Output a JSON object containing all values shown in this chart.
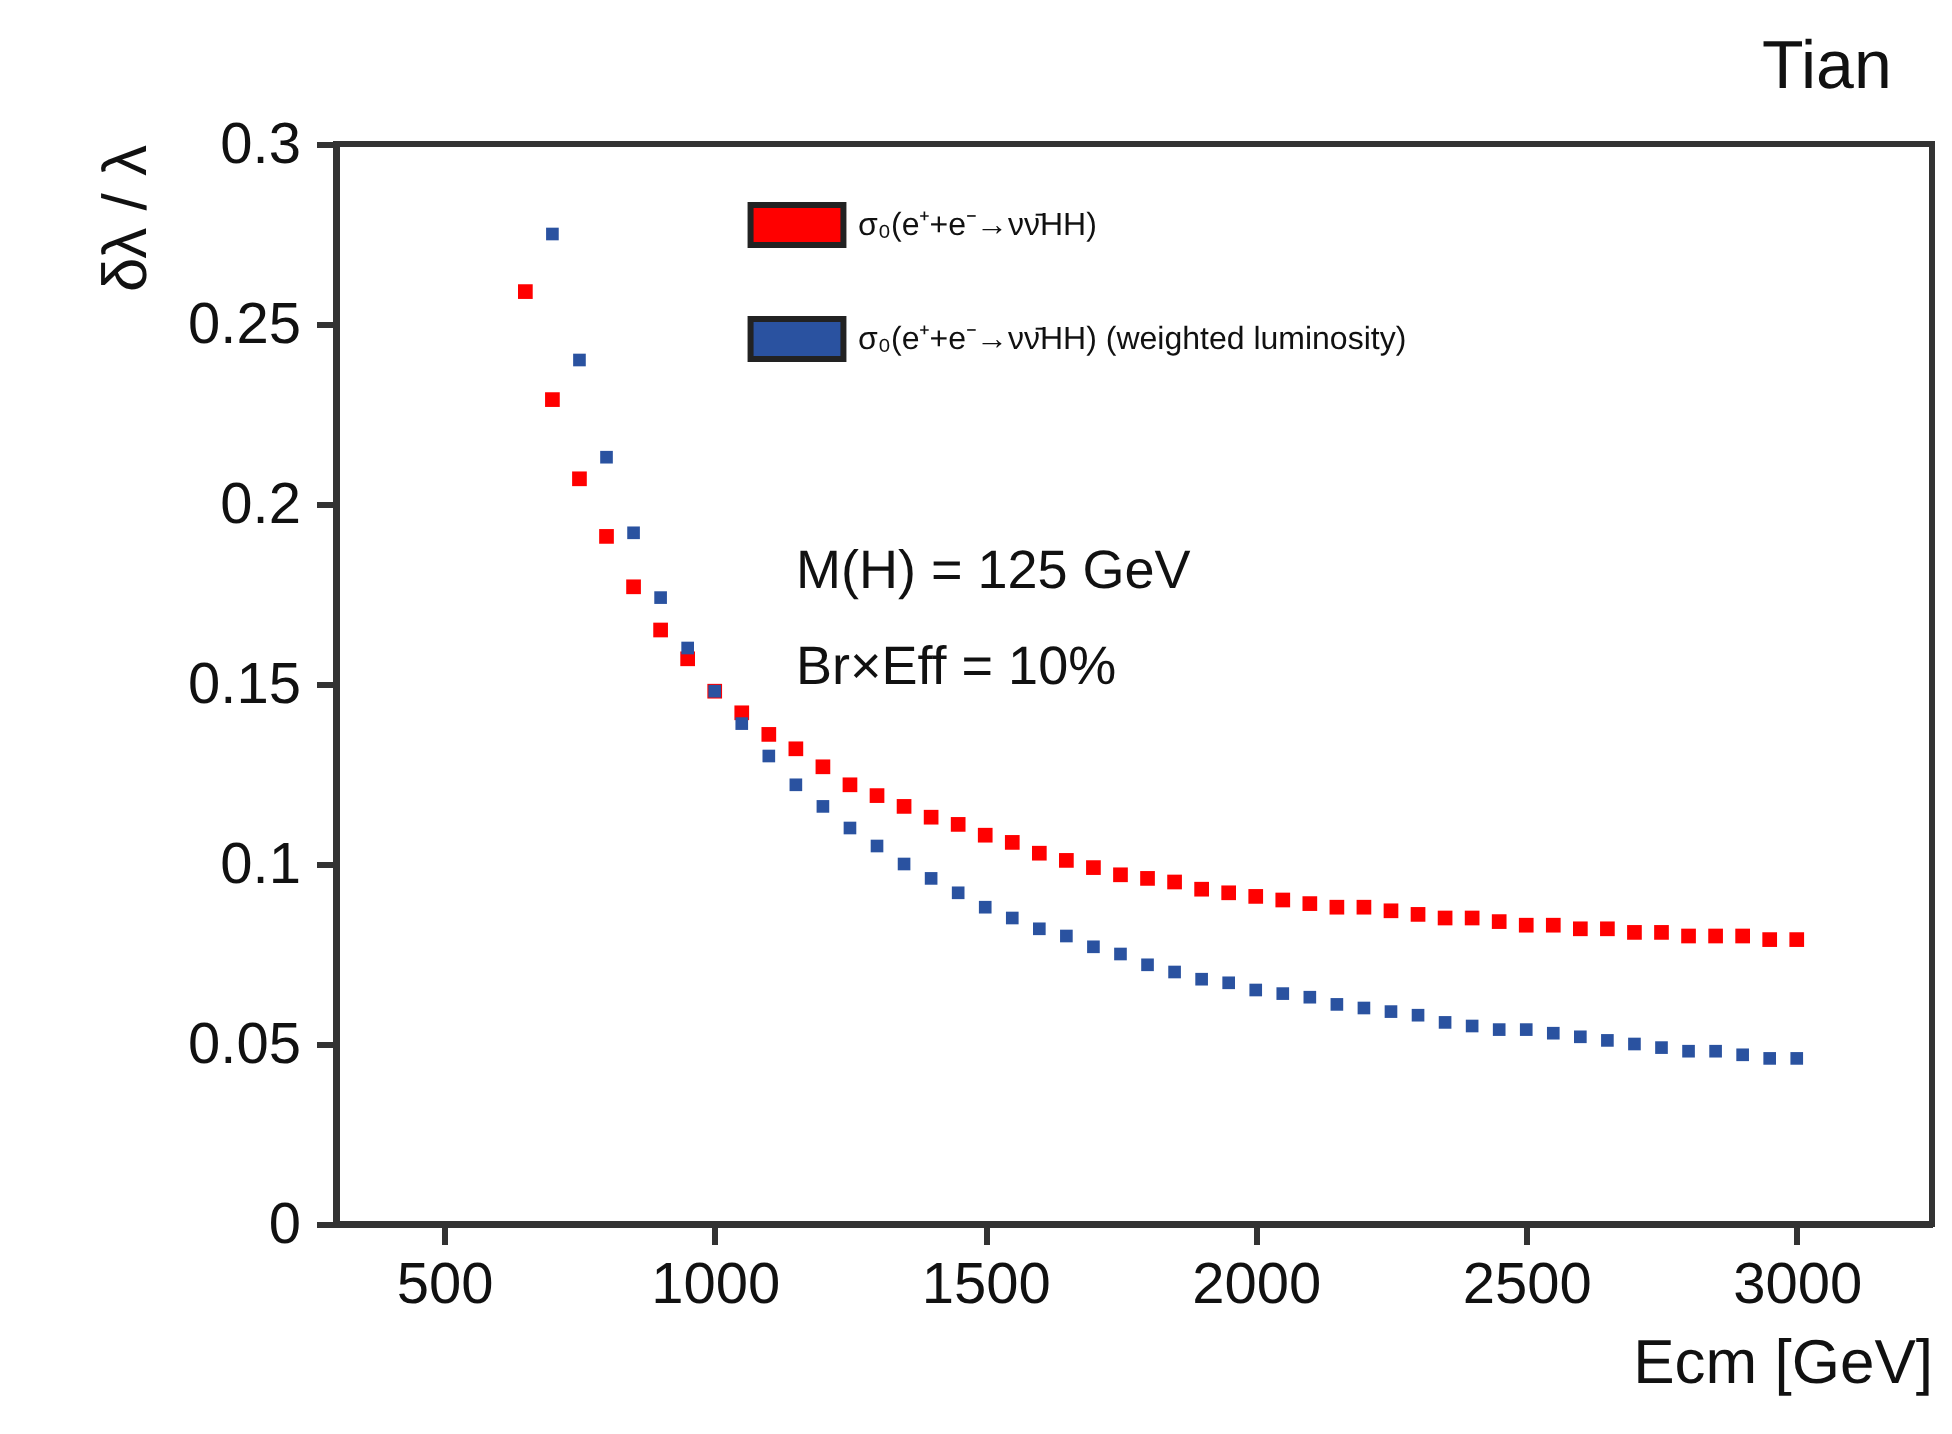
{
  "chart_data": {
    "type": "scatter",
    "xlabel": "Ecm [GeV]",
    "ylabel": "δλ / λ",
    "annotations": [
      "Tian",
      "M(H) = 125 GeV",
      "Br×Eff = 10%"
    ],
    "xlim": [
      300,
      3250
    ],
    "xticks": [
      500,
      1000,
      1500,
      2000,
      2500,
      3000
    ],
    "ylim": [
      0,
      0.3
    ],
    "yticks": [
      0,
      0.05,
      0.1,
      0.15,
      0.2,
      0.25,
      0.3
    ],
    "grid": false,
    "legend": "top right",
    "marker": "square",
    "series": [
      {
        "name": "σ₀(e⁺+e⁻→νν̄HH)",
        "color": "#ff0000",
        "x": [
          650,
          700,
          750,
          800,
          850,
          900,
          950,
          1000,
          1050,
          1100,
          1150,
          1200,
          1250,
          1300,
          1350,
          1400,
          1450,
          1500,
          1550,
          1600,
          1650,
          1700,
          1750,
          1800,
          1850,
          1900,
          1950,
          2000,
          2050,
          2100,
          2150,
          2200,
          2250,
          2300,
          2350,
          2400,
          2450,
          2500,
          2550,
          2600,
          2650,
          2700,
          2750,
          2800,
          2850,
          2900,
          2950,
          3000
        ],
        "values": [
          0.259,
          0.229,
          0.207,
          0.191,
          0.177,
          0.165,
          0.157,
          0.148,
          0.142,
          0.136,
          0.132,
          0.127,
          0.122,
          0.119,
          0.116,
          0.113,
          0.111,
          0.108,
          0.106,
          0.103,
          0.101,
          0.099,
          0.097,
          0.096,
          0.095,
          0.093,
          0.092,
          0.091,
          0.09,
          0.089,
          0.088,
          0.088,
          0.087,
          0.086,
          0.085,
          0.085,
          0.084,
          0.083,
          0.083,
          0.082,
          0.082,
          0.081,
          0.081,
          0.08,
          0.08,
          0.08,
          0.079,
          0.079
        ]
      },
      {
        "name": "σ₀(e⁺+e⁻→νν̄HH) (weighted luminosity)",
        "color": "#2a52a0",
        "x": [
          700,
          750,
          800,
          850,
          900,
          950,
          1000,
          1050,
          1100,
          1150,
          1200,
          1250,
          1300,
          1350,
          1400,
          1450,
          1500,
          1550,
          1600,
          1650,
          1700,
          1750,
          1800,
          1850,
          1900,
          1950,
          2000,
          2050,
          2100,
          2150,
          2200,
          2250,
          2300,
          2350,
          2400,
          2450,
          2500,
          2550,
          2600,
          2650,
          2700,
          2750,
          2800,
          2850,
          2900,
          2950,
          3000
        ],
        "values": [
          0.275,
          0.24,
          0.213,
          0.192,
          0.174,
          0.16,
          0.148,
          0.139,
          0.13,
          0.122,
          0.116,
          0.11,
          0.105,
          0.1,
          0.096,
          0.092,
          0.088,
          0.085,
          0.082,
          0.08,
          0.077,
          0.075,
          0.072,
          0.07,
          0.068,
          0.067,
          0.065,
          0.064,
          0.063,
          0.061,
          0.06,
          0.059,
          0.058,
          0.056,
          0.055,
          0.054,
          0.054,
          0.053,
          0.052,
          0.051,
          0.05,
          0.049,
          0.048,
          0.048,
          0.047,
          0.046,
          0.046
        ]
      }
    ]
  }
}
